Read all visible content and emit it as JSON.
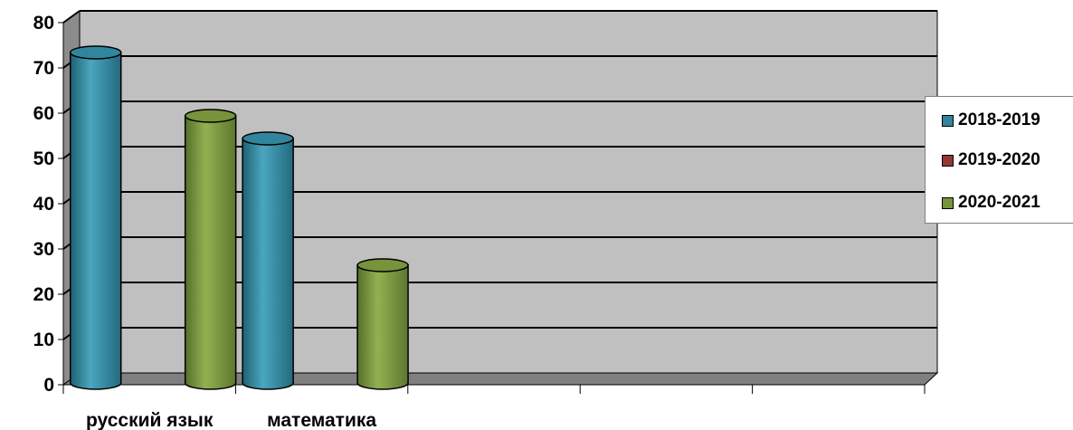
{
  "chart_data": {
    "type": "bar",
    "categories": [
      "русский язык",
      "математика",
      "",
      "",
      ""
    ],
    "series": [
      {
        "name": "2018-2019",
        "values": [
          73,
          54,
          null,
          null,
          null
        ]
      },
      {
        "name": "2019-2020",
        "values": [
          null,
          null,
          null,
          null,
          null
        ]
      },
      {
        "name": "2020-2021",
        "values": [
          59,
          26,
          null,
          null,
          null
        ]
      }
    ],
    "title": "",
    "xlabel": "",
    "ylabel": "",
    "ylim": [
      0,
      80
    ],
    "yticks": [
      0,
      10,
      20,
      30,
      40,
      50,
      60,
      70,
      80
    ],
    "ytick_labels": [
      "0",
      "10",
      "20",
      "30",
      "40",
      "50",
      "60",
      "70",
      "80"
    ],
    "grid": true,
    "style": "3d-cylinder",
    "legend_position": "right",
    "colors": {
      "2018-2019": "#31859c",
      "2019-2020": "#953735",
      "2020-2021": "#77933c",
      "plot_background": "#c0c0c0",
      "floor": "#808080"
    }
  }
}
